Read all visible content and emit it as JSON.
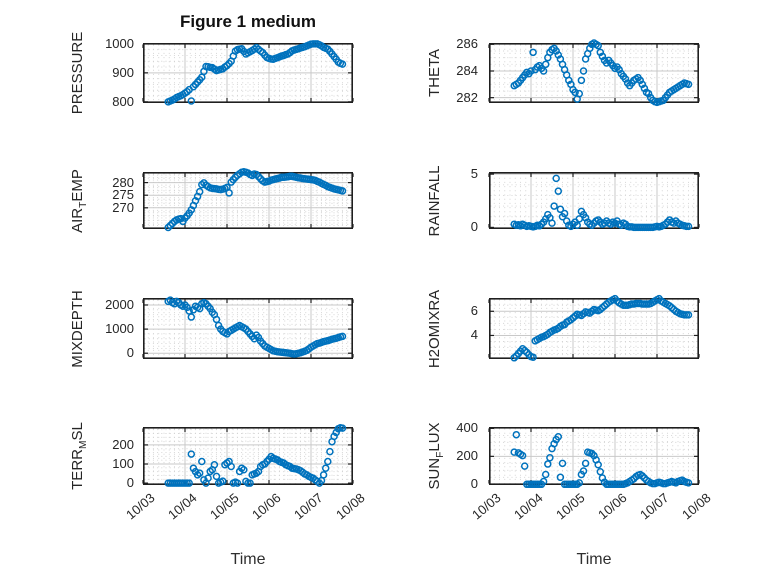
{
  "figure": {
    "title": "Figure 1 medium",
    "xlabel": "Time",
    "marker_color": "#0072BD",
    "axis_color": "#1f1f1f",
    "grid_major_color": "#c9c9c9",
    "grid_minor_color": "#d2d2d2",
    "background": "#ffffff",
    "xlim": [
      3,
      8
    ],
    "xticks": [
      3,
      4,
      5,
      6,
      7,
      8
    ],
    "xtick_labels": [
      "10/03",
      "10/04",
      "10/05",
      "10/06",
      "10/07",
      "10/08"
    ],
    "x_minor_step": 0.125,
    "x": [
      3.6,
      3.65,
      3.7,
      3.75,
      3.8,
      3.85,
      3.9,
      3.95,
      4,
      4.05,
      4.1,
      4.15,
      4.2,
      4.25,
      4.3,
      4.35,
      4.4,
      4.45,
      4.5,
      4.55,
      4.6,
      4.65,
      4.7,
      4.75,
      4.8,
      4.85,
      4.9,
      4.95,
      5,
      5.05,
      5.1,
      5.15,
      5.2,
      5.25,
      5.3,
      5.35,
      5.4,
      5.45,
      5.5,
      5.55,
      5.6,
      5.65,
      5.7,
      5.75,
      5.8,
      5.85,
      5.9,
      5.95,
      6,
      6.05,
      6.1,
      6.15,
      6.2,
      6.25,
      6.3,
      6.35,
      6.4,
      6.45,
      6.5,
      6.55,
      6.6,
      6.65,
      6.7,
      6.75,
      6.8,
      6.85,
      6.9,
      6.95,
      7,
      7.05,
      7.1,
      7.15,
      7.2,
      7.25,
      7.3,
      7.35,
      7.4,
      7.45,
      7.5,
      7.55,
      7.6,
      7.65,
      7.7,
      7.75
    ]
  },
  "chart_data": [
    {
      "id": "pressure",
      "type": "scatter",
      "ylabel": {
        "pre": "PRESSURE",
        "sub": "",
        "post": ""
      },
      "ylim": [
        796,
        1003
      ],
      "yticks": [
        800,
        900,
        1000
      ],
      "y_minor_step": 20,
      "y": [
        800,
        803,
        806,
        810,
        815,
        818,
        821,
        825,
        830,
        835,
        842,
        803,
        852,
        860,
        868,
        876,
        885,
        905,
        922,
        921,
        919,
        918,
        913,
        908,
        910,
        912,
        914,
        920,
        925,
        932,
        940,
        958,
        975,
        980,
        982,
        983,
        974,
        965,
        969,
        973,
        977,
        982,
        987,
        981,
        975,
        970,
        961,
        953,
        950,
        948,
        947,
        950,
        952,
        955,
        958,
        960,
        963,
        965,
        970,
        976,
        979,
        981,
        983,
        986,
        988,
        990,
        993,
        996,
        999,
        1000,
        1000,
        1000,
        997,
        993,
        988,
        985,
        982,
        974,
        965,
        956,
        947,
        937,
        933,
        930
      ]
    },
    {
      "id": "theta",
      "type": "scatter",
      "ylabel": {
        "pre": "THETA",
        "sub": "",
        "post": ""
      },
      "ylim": [
        281.6,
        286.1
      ],
      "yticks": [
        282,
        284,
        286
      ],
      "y_minor_step": 0.5,
      "y": [
        282.9,
        283,
        283.1,
        283.3,
        283.5,
        283.7,
        283.9,
        283.8,
        284,
        285.4,
        284.1,
        284.3,
        284.4,
        284.2,
        284,
        284.5,
        285,
        285.4,
        285.6,
        285.7,
        285.5,
        285.2,
        284.9,
        284.5,
        284.1,
        283.7,
        283.3,
        283,
        282.6,
        282.4,
        281.9,
        282.3,
        283.3,
        284,
        284.9,
        285.3,
        285.7,
        286,
        286.1,
        286,
        285.9,
        285.4,
        285.1,
        284.8,
        284.6,
        284.8,
        284.6,
        284.4,
        284.2,
        284.3,
        284.1,
        283.8,
        283.6,
        283.4,
        283.1,
        282.9,
        283.1,
        283.3,
        283.4,
        283.5,
        283.3,
        283,
        282.7,
        282.4,
        282.3,
        282,
        281.8,
        281.7,
        281.65,
        281.7,
        281.75,
        281.8,
        282,
        282.2,
        282.4,
        282.5,
        282.6,
        282.7,
        282.8,
        282.9,
        283,
        283.1,
        283.05,
        283
      ]
    },
    {
      "id": "air-temp",
      "type": "scatter",
      "ylabel": {
        "pre": "AIR",
        "sub": "T",
        "post": "EMP"
      },
      "ylim": [
        261.6,
        284.2
      ],
      "yticks": [
        270,
        275,
        280
      ],
      "y_minor_step": 1,
      "y": [
        262.2,
        263,
        263.8,
        264.6,
        265.2,
        265.5,
        265.7,
        264.6,
        265.9,
        266.8,
        267.9,
        269.2,
        270.9,
        272.8,
        274.5,
        276.4,
        279.2,
        279.9,
        279,
        278.4,
        277.9,
        277.7,
        277.6,
        277.5,
        277.3,
        277.2,
        277.4,
        277.7,
        278.1,
        275.9,
        280.2,
        281.2,
        282.1,
        282.9,
        283.5,
        284.1,
        284.3,
        284.1,
        283.8,
        283.2,
        282.8,
        283.4,
        283.2,
        282.4,
        281.5,
        280.7,
        280.2,
        280.4,
        280.6,
        281,
        281.2,
        281.4,
        281.6,
        281.8,
        282.1,
        282.1,
        282.2,
        282.3,
        282.5,
        282.5,
        282.3,
        282.1,
        281.9,
        281.8,
        281.6,
        281.5,
        281.4,
        281.3,
        281.2,
        281.1,
        280.9,
        280.5,
        280.2,
        279.7,
        279.3,
        278.9,
        278.4,
        278.1,
        277.8,
        277.5,
        277.3,
        277.1,
        276.9,
        276.7
      ]
    },
    {
      "id": "rainfall",
      "type": "scatter",
      "ylabel": {
        "pre": "RAINFALL",
        "sub": "",
        "post": ""
      },
      "ylim": [
        -0.15,
        5.2
      ],
      "yticks": [
        0,
        5
      ],
      "y_minor_step": 1,
      "y": [
        0.3,
        0.2,
        0.25,
        0.15,
        0.3,
        0.2,
        0.1,
        0.15,
        0.1,
        0.05,
        0.1,
        0.2,
        0.15,
        0.3,
        0.5,
        0.8,
        1.2,
        0.9,
        0.4,
        2,
        4.6,
        3.4,
        1.7,
        1,
        1.3,
        0.6,
        0.2,
        0.1,
        0.3,
        0.5,
        0.2,
        0.8,
        1.5,
        1.2,
        0.9,
        0.5,
        0.3,
        0.2,
        0.4,
        0.6,
        0.7,
        0.5,
        0.3,
        0.4,
        0.6,
        0.4,
        0.3,
        0.5,
        0.4,
        0.6,
        0.3,
        0.2,
        0.4,
        0.3,
        0.1,
        0.05,
        0.05,
        0,
        0,
        0,
        0,
        0,
        0,
        0,
        0,
        0,
        0,
        0.05,
        0.1,
        0.05,
        0.1,
        0.2,
        0.3,
        0.5,
        0.7,
        0.5,
        0.4,
        0.6,
        0.4,
        0.3,
        0.2,
        0.15,
        0.1,
        0.1
      ]
    },
    {
      "id": "mixdepth",
      "type": "scatter",
      "ylabel": {
        "pre": "MIXDEPTH",
        "sub": "",
        "post": ""
      },
      "ylim": [
        -240,
        2290
      ],
      "yticks": [
        0,
        1000,
        2000
      ],
      "y_minor_step": 200,
      "y": [
        2150,
        2200,
        2100,
        2050,
        2150,
        2100,
        2000,
        1950,
        2000,
        1900,
        1750,
        1500,
        1800,
        1950,
        1900,
        1850,
        2050,
        2100,
        2050,
        1950,
        1850,
        1700,
        1600,
        1400,
        1150,
        1000,
        900,
        850,
        800,
        900,
        950,
        1000,
        1050,
        1100,
        1150,
        1100,
        1050,
        1000,
        900,
        800,
        700,
        600,
        750,
        650,
        500,
        400,
        300,
        250,
        200,
        150,
        100,
        80,
        60,
        50,
        40,
        30,
        20,
        10,
        0,
        -20,
        -30,
        -20,
        0,
        20,
        50,
        80,
        120,
        180,
        250,
        300,
        350,
        400,
        420,
        450,
        480,
        500,
        520,
        550,
        580,
        600,
        620,
        650,
        680,
        700
      ]
    },
    {
      "id": "h2omixra",
      "type": "scatter",
      "ylabel": {
        "pre": "H2OMIXRA",
        "sub": "",
        "post": ""
      },
      "ylim": [
        2.05,
        7.1
      ],
      "yticks": [
        4,
        6
      ],
      "y_minor_step": 0.5,
      "y": [
        2.15,
        2.3,
        2.5,
        2.7,
        2.9,
        2.75,
        2.6,
        2.4,
        2.25,
        2.2,
        3.55,
        3.65,
        3.75,
        3.85,
        3.9,
        4,
        4.1,
        4.25,
        4.35,
        4.45,
        4.5,
        4.6,
        4.75,
        4.85,
        4.9,
        5.1,
        5.2,
        5.3,
        5.45,
        5.6,
        5.75,
        5.7,
        5.65,
        5.8,
        5.95,
        5.9,
        5.85,
        6,
        6.15,
        6.1,
        6.05,
        6.15,
        6.3,
        6.45,
        6.6,
        6.75,
        6.85,
        6.95,
        7.05,
        6.85,
        6.7,
        6.6,
        6.5,
        6.5,
        6.5,
        6.55,
        6.6,
        6.6,
        6.65,
        6.65,
        6.65,
        6.6,
        6.6,
        6.6,
        6.6,
        6.65,
        6.75,
        6.85,
        6.95,
        7.05,
        6.85,
        6.75,
        6.65,
        6.55,
        6.45,
        6.3,
        6.15,
        6,
        5.9,
        5.8,
        5.75,
        5.7,
        5.7,
        5.7
      ]
    },
    {
      "id": "terr-msl",
      "type": "scatter",
      "ylabel": {
        "pre": "TERR",
        "sub": "M",
        "post": "SL"
      },
      "ylim": [
        -10,
        294
      ],
      "yticks": [
        0,
        100,
        200
      ],
      "y_minor_step": 20,
      "y": [
        0,
        0,
        0,
        0,
        0,
        0,
        0,
        0,
        0,
        0,
        0,
        152,
        78,
        60,
        43,
        52,
        113,
        17,
        0,
        26,
        61,
        70,
        96,
        35,
        0,
        5,
        10,
        96,
        105,
        113,
        87,
        0,
        5,
        0,
        61,
        78,
        70,
        9,
        0,
        0,
        43,
        48,
        52,
        61,
        87,
        96,
        100,
        113,
        125,
        139,
        130,
        126,
        122,
        113,
        109,
        105,
        96,
        91,
        87,
        78,
        76,
        74,
        70,
        65,
        57,
        48,
        43,
        35,
        30,
        26,
        17,
        9,
        0,
        13,
        43,
        78,
        113,
        165,
        217,
        245,
        265,
        285,
        290,
        288
      ]
    },
    {
      "id": "sun-flux",
      "type": "scatter",
      "ylabel": {
        "pre": "SUN",
        "sub": "F",
        "post": "LUX"
      },
      "ylim": [
        -5,
        410
      ],
      "yticks": [
        0,
        200,
        400
      ],
      "y_minor_step": 50,
      "y": [
        230,
        355,
        225,
        215,
        205,
        130,
        0,
        0,
        0,
        0,
        0,
        0,
        0,
        0,
        20,
        70,
        145,
        190,
        255,
        290,
        320,
        340,
        50,
        150,
        0,
        0,
        0,
        0,
        0,
        0,
        0,
        10,
        70,
        95,
        150,
        230,
        225,
        220,
        205,
        175,
        140,
        90,
        45,
        15,
        0,
        0,
        0,
        0,
        0,
        0,
        0,
        0,
        0,
        5,
        10,
        20,
        30,
        40,
        55,
        65,
        70,
        60,
        45,
        30,
        20,
        10,
        5,
        5,
        10,
        15,
        10,
        5,
        5,
        10,
        15,
        20,
        15,
        10,
        20,
        25,
        30,
        20,
        15,
        10
      ]
    }
  ]
}
